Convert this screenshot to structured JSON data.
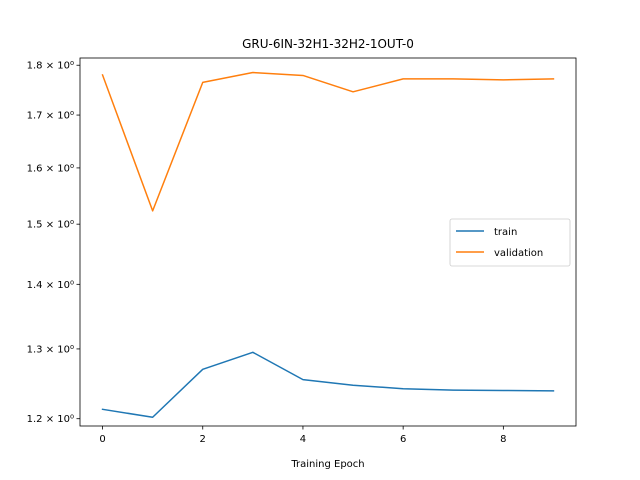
{
  "chart_data": {
    "type": "line",
    "title": "GRU-6IN-32H1-32H2-1OUT-0",
    "xlabel": "Training Epoch",
    "ylabel": "",
    "yscale": "log",
    "x": [
      0,
      1,
      2,
      3,
      4,
      5,
      6,
      7,
      8,
      9
    ],
    "xlim": [
      -0.45,
      9.45
    ],
    "ylim": [
      1.19,
      1.815
    ],
    "xticks": [
      0,
      2,
      4,
      6,
      8
    ],
    "xtick_labels": [
      "0",
      "2",
      "4",
      "6",
      "8"
    ],
    "yticks": [
      1.2,
      1.3,
      1.4,
      1.5,
      1.6,
      1.7,
      1.8
    ],
    "ytick_labels": [
      "1.2 × 10⁰",
      "1.3 × 10⁰",
      "1.4 × 10⁰",
      "1.5 × 10⁰",
      "1.6 × 10⁰",
      "1.7 × 10⁰",
      "1.8 × 10⁰"
    ],
    "grid": false,
    "legend_position": "center-right",
    "series": [
      {
        "name": "train",
        "color": "#1f77b4",
        "values": [
          1.213,
          1.202,
          1.27,
          1.295,
          1.255,
          1.247,
          1.242,
          1.24,
          1.2395,
          1.239
        ]
      },
      {
        "name": "validation",
        "color": "#ff7f0e",
        "values": [
          1.78,
          1.523,
          1.765,
          1.785,
          1.779,
          1.746,
          1.772,
          1.772,
          1.77,
          1.772
        ]
      }
    ]
  }
}
